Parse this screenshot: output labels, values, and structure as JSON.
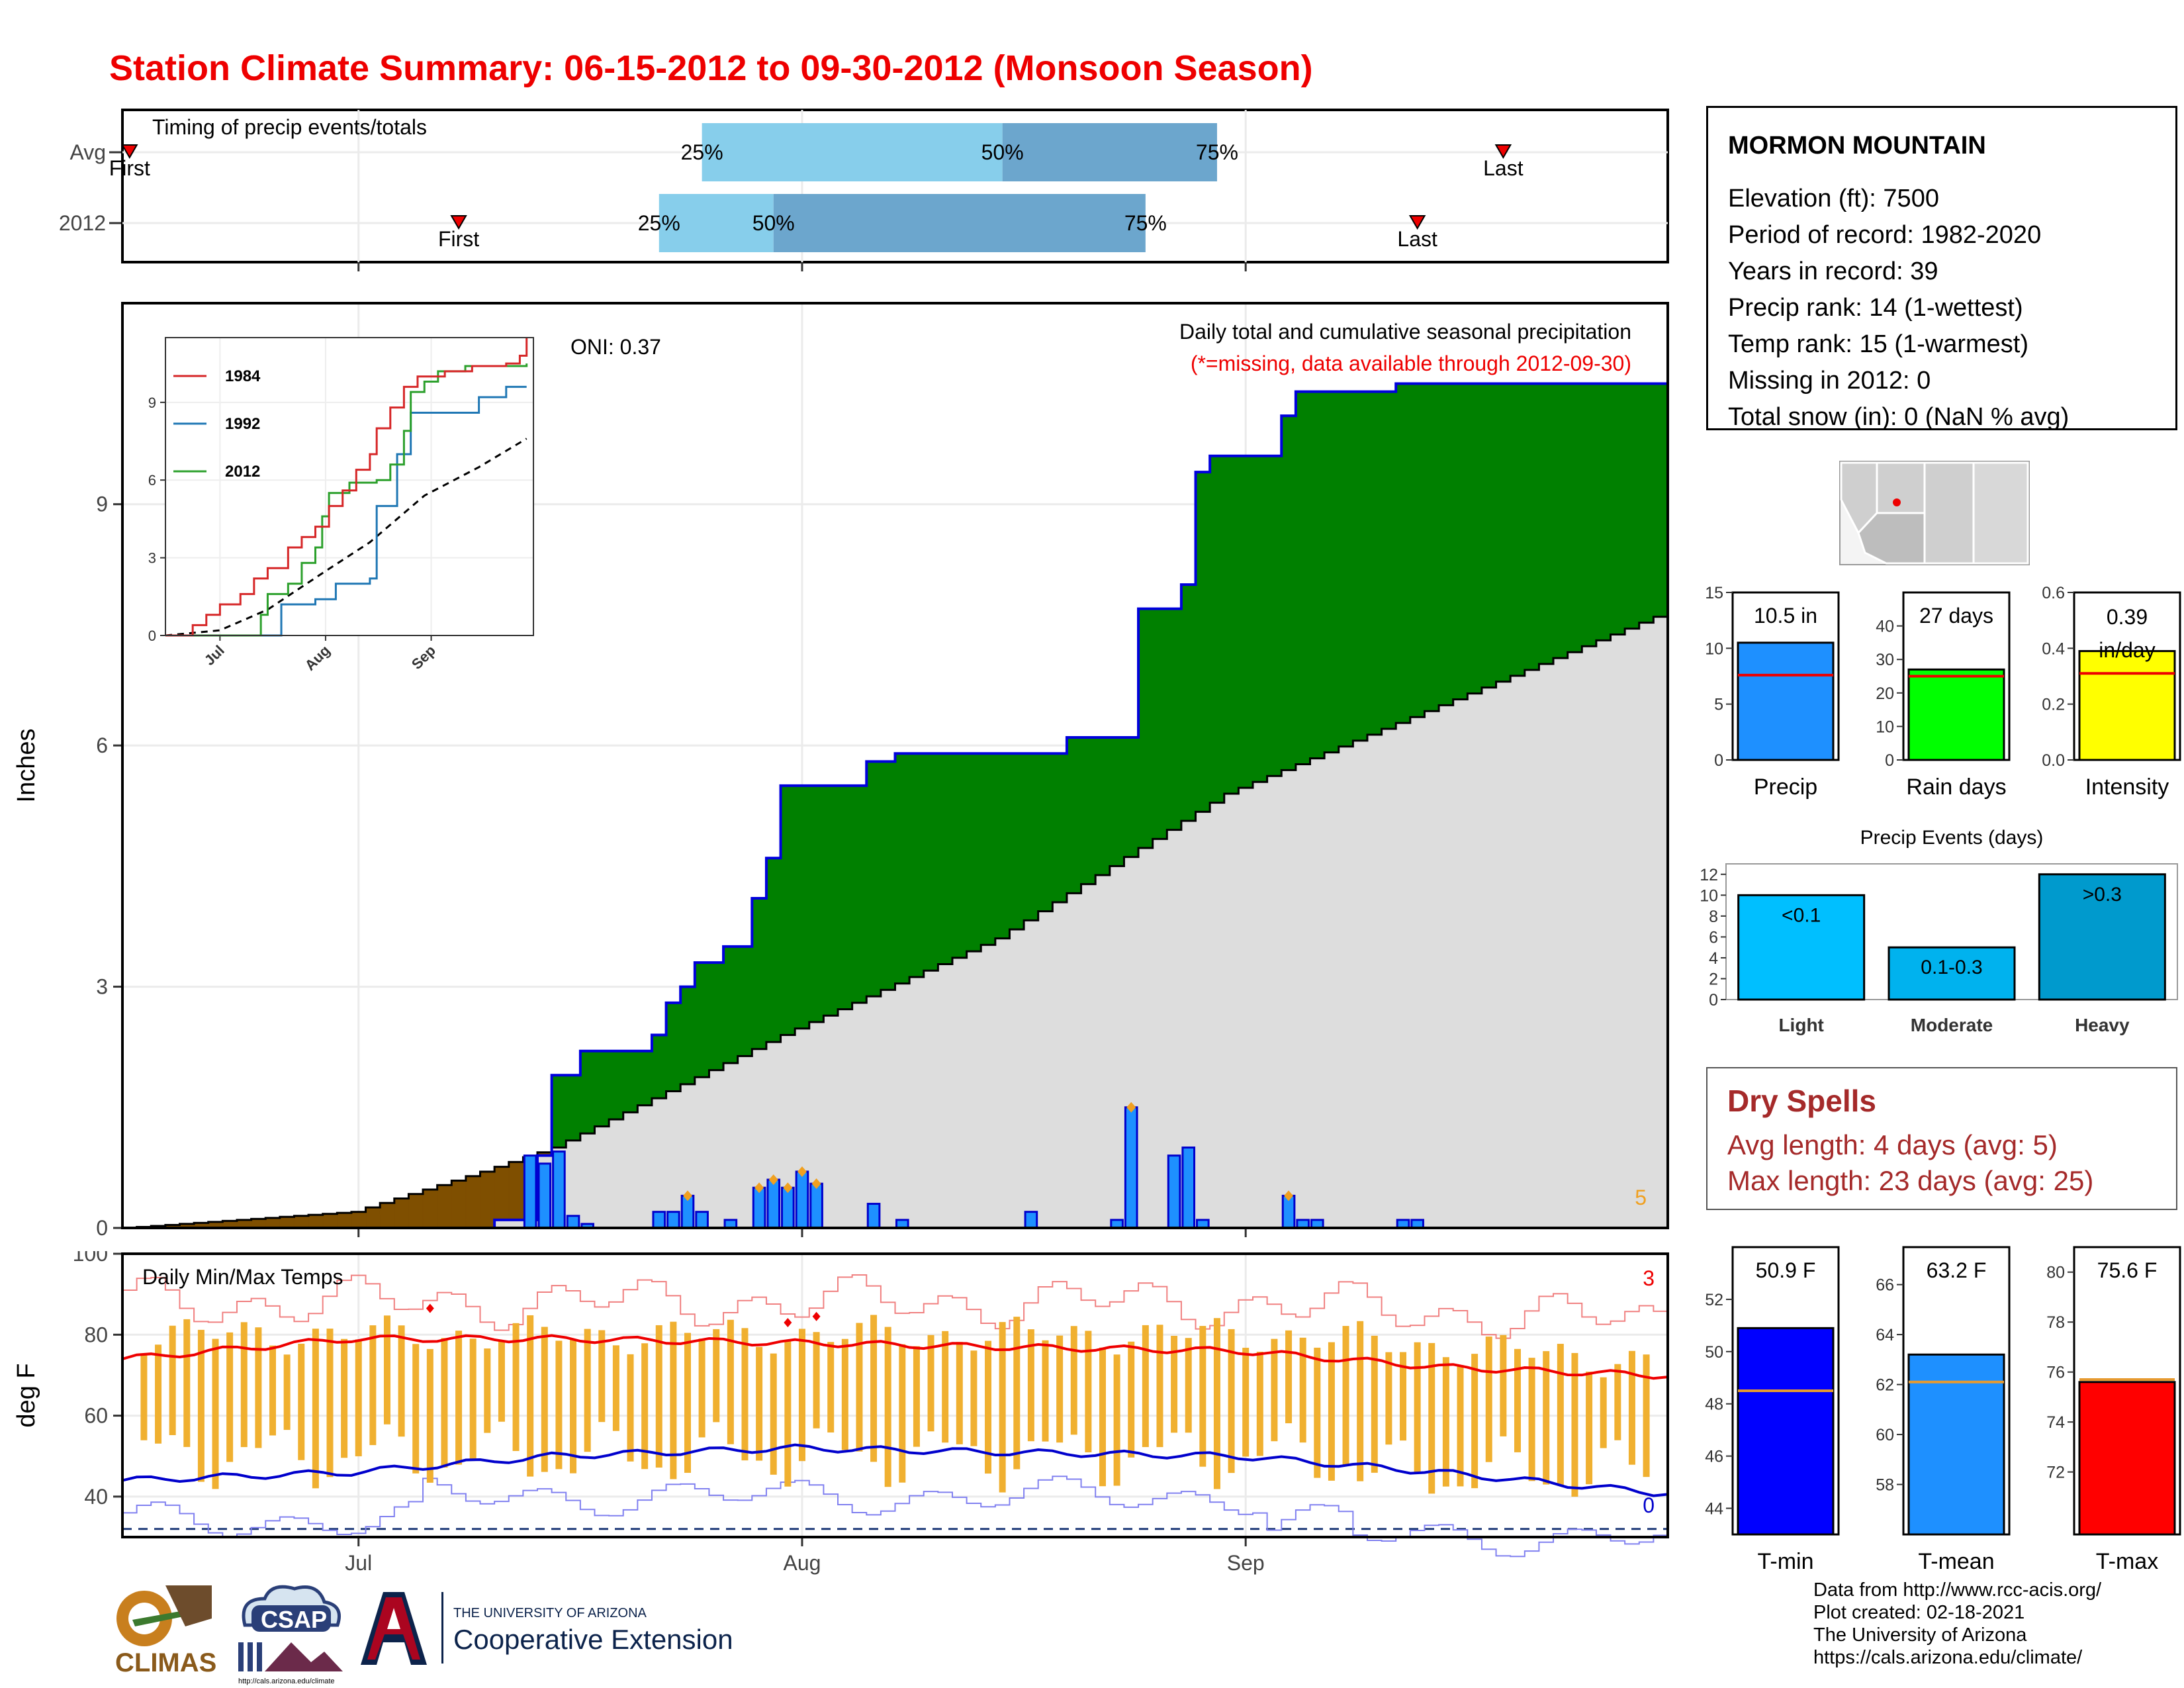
{
  "title": "Station Climate Summary: 06-15-2012 to 09-30-2012 (Monsoon Season)",
  "colors": {
    "title": "#ee0000",
    "green_surplus": "#008000",
    "brown_deficit": "#7f4f00",
    "avg_cumulative": "#dddddd",
    "daily_bars": "#1e90ff",
    "timing_light": "#87ceeb",
    "timing_dark": "#6ca6cd",
    "temp_bars": "#f0b030",
    "temp_max_line": "#ee0000",
    "temp_min_line": "#0000cc",
    "dry_spells": "#a52a2a"
  },
  "timing": {
    "label": "Timing of precip events/totals",
    "rows": [
      {
        "name": "Avg",
        "first_label": "First",
        "last_label": "Last",
        "first": "2012-06-15",
        "p25": "2012-07-25",
        "p50": "2012-08-15",
        "p75": "2012-08-30",
        "last": "2012-09-19"
      },
      {
        "name": "2012",
        "first_label": "First",
        "last_label": "Last",
        "first": "2012-07-08",
        "p25": "2012-07-22",
        "p50": "2012-07-30",
        "p75": "2012-08-25",
        "last": "2012-09-13"
      }
    ],
    "pct_labels": [
      "25%",
      "50%",
      "75%"
    ]
  },
  "precip": {
    "ylabel": "Inches",
    "oni": "ONI: 0.37",
    "caption": "Daily total and cumulative seasonal precipitation",
    "note": "(*=missing, data available through 2012-09-30)",
    "corner_value": "5",
    "yticks": [
      "0",
      "3",
      "6",
      "9"
    ],
    "xticks": [
      "Jul",
      "Aug",
      "Sep"
    ]
  },
  "inset": {
    "legend": [
      "1984",
      "1992",
      "2012"
    ],
    "yticks": [
      "0",
      "3",
      "6",
      "9"
    ],
    "xticks": [
      "Jul",
      "Aug",
      "Sep"
    ]
  },
  "temps": {
    "ylabel": "deg F",
    "label": "Daily Min/Max Temps",
    "corner_top": "3",
    "corner_bottom": "0",
    "yticks": [
      "40",
      "60",
      "80",
      "100"
    ]
  },
  "station": {
    "name": "MORMON MOUNTAIN",
    "lines": [
      "Elevation (ft): 7500",
      "Period of record: 1982-2020",
      "Years in record: 39",
      "Precip rank: 14 (1-wettest)",
      "Temp rank: 15 (1-warmest)",
      "Missing in 2012: 0",
      "Total snow (in): 0 (NaN % avg)"
    ]
  },
  "summary_bars": [
    {
      "label": "Precip",
      "value_label": "10.5 in",
      "value": 10.5,
      "avg": 7.6,
      "ymax": 15,
      "ticks": [
        "0",
        "5",
        "10",
        "15"
      ],
      "color": "#1e90ff"
    },
    {
      "label": "Rain days",
      "value_label": "27 days",
      "value": 27,
      "avg": 25,
      "ymax": 50,
      "ticks": [
        "0",
        "10",
        "20",
        "30",
        "40"
      ],
      "color": "#00ff00"
    },
    {
      "label": "Intensity",
      "value_label": "0.39\nin/day",
      "value": 0.39,
      "avg": 0.31,
      "ymax": 0.6,
      "ticks": [
        "0.0",
        "0.2",
        "0.4",
        "0.6"
      ],
      "color": "#ffff00"
    }
  ],
  "precip_events": {
    "title": "Precip Events (days)",
    "yticks": [
      "0",
      "2",
      "4",
      "6",
      "8",
      "10",
      "12"
    ],
    "bars": [
      {
        "category": "Light",
        "label": "<0.1",
        "value": 10,
        "color": "#00bfff"
      },
      {
        "category": "Moderate",
        "label": "0.1-0.3",
        "value": 5,
        "color": "#00b2ee"
      },
      {
        "category": "Heavy",
        "label": ">0.3",
        "value": 12,
        "color": "#009acd"
      }
    ]
  },
  "dry_spells": {
    "title": "Dry Spells",
    "avg_line": "Avg length: 4 days (avg: 5)",
    "max_line": "Max length: 23 days (avg: 25)"
  },
  "temp_bars": [
    {
      "label": "T-min",
      "value_label": "50.9 F",
      "value": 50.9,
      "avg": 48.5,
      "ymin": 43,
      "ymax": 54,
      "ticks": [
        "44",
        "46",
        "48",
        "50",
        "52"
      ],
      "color": "#0000ff"
    },
    {
      "label": "T-mean",
      "value_label": "63.2 F",
      "value": 63.2,
      "avg": 62.1,
      "ymin": 56,
      "ymax": 67.5,
      "ticks": [
        "58",
        "60",
        "62",
        "64",
        "66"
      ],
      "color": "#1e90ff"
    },
    {
      "label": "T-max",
      "value_label": "75.6 F",
      "value": 75.6,
      "avg": 75.7,
      "ymin": 69.5,
      "ymax": 81,
      "ticks": [
        "72",
        "74",
        "76",
        "78",
        "80"
      ],
      "color": "#ff0000"
    }
  ],
  "logos": {
    "climas": "CLIMAS",
    "csap": "CSAP",
    "csap_url": "http://cals.arizona.edu/climate",
    "ua_top": "THE UNIVERSITY OF ARIZONA",
    "ua_bottom": "Cooperative Extension"
  },
  "credits": [
    "Data from http://www.rcc-acis.org/",
    "Plot created: 02-18-2021",
    "The University of Arizona",
    "https://cals.arizona.edu/climate/"
  ],
  "chart_data": {
    "type": "area",
    "period": [
      "2012-06-15",
      "2012-09-30"
    ],
    "xlabel": "",
    "ylabel": "Inches",
    "ylim": [
      0,
      11.5
    ],
    "series": [
      {
        "name": "2012",
        "x": [
          "2012-06-15",
          "2012-07-11",
          "2012-07-14",
          "2012-07-15",
          "2012-07-17",
          "2012-07-22",
          "2012-07-23",
          "2012-07-24",
          "2012-07-25",
          "2012-07-27",
          "2012-07-29",
          "2012-07-30",
          "2012-07-31",
          "2012-08-02",
          "2012-08-06",
          "2012-08-08",
          "2012-08-12",
          "2012-08-20",
          "2012-08-24",
          "2012-08-25",
          "2012-08-28",
          "2012-08-29",
          "2012-08-30",
          "2012-09-04",
          "2012-09-05",
          "2012-09-06",
          "2012-09-11",
          "2012-09-12",
          "2012-09-30"
        ],
        "y": [
          0.0,
          0.1,
          0.9,
          1.9,
          2.2,
          2.4,
          2.8,
          3.0,
          3.3,
          3.5,
          4.1,
          4.6,
          5.5,
          5.5,
          5.8,
          5.9,
          5.9,
          6.1,
          6.1,
          7.7,
          8.0,
          9.4,
          9.6,
          10.1,
          10.4,
          10.4,
          10.4,
          10.5,
          10.5
        ]
      },
      {
        "name": "Average",
        "x": [
          "2012-06-15",
          "2012-07-01",
          "2012-07-10",
          "2012-07-15",
          "2012-07-31",
          "2012-08-15",
          "2012-08-31",
          "2012-09-15",
          "2012-09-30"
        ],
        "y": [
          0.0,
          0.2,
          0.7,
          1.0,
          2.4,
          3.6,
          5.4,
          6.5,
          7.6
        ]
      },
      {
        "name": "Daily precip",
        "x": [
          "2012-07-13",
          "2012-07-14",
          "2012-07-15",
          "2012-07-16",
          "2012-07-17",
          "2012-07-22",
          "2012-07-23",
          "2012-07-24",
          "2012-07-25",
          "2012-07-27",
          "2012-07-29",
          "2012-07-30",
          "2012-07-31",
          "2012-08-01",
          "2012-08-02",
          "2012-08-06",
          "2012-08-08",
          "2012-08-17",
          "2012-08-23",
          "2012-08-24",
          "2012-08-27",
          "2012-08-28",
          "2012-08-29",
          "2012-09-04",
          "2012-09-05",
          "2012-09-06",
          "2012-09-12",
          "2012-09-13"
        ],
        "y": [
          0.9,
          0.8,
          0.95,
          0.15,
          0.05,
          0.2,
          0.2,
          0.4,
          0.2,
          0.1,
          0.5,
          0.6,
          0.5,
          0.7,
          0.55,
          0.3,
          0.1,
          0.2,
          0.1,
          1.5,
          0.9,
          1.0,
          0.1,
          0.4,
          0.1,
          0.1,
          0.1,
          0.1
        ]
      }
    ],
    "temps": {
      "type": "line",
      "ylabel": "deg F",
      "ylim": [
        30,
        100
      ],
      "series": [
        {
          "name": "Avg max",
          "x": [
            "2012-06-15",
            "2012-07-01",
            "2012-07-15",
            "2012-08-01",
            "2012-08-15",
            "2012-09-01",
            "2012-09-15",
            "2012-09-30"
          ],
          "y": [
            74,
            79,
            79,
            78,
            77,
            76,
            72,
            70
          ]
        },
        {
          "name": "Avg min",
          "x": [
            "2012-06-15",
            "2012-07-01",
            "2012-07-15",
            "2012-08-01",
            "2012-08-15",
            "2012-09-01",
            "2012-09-15",
            "2012-09-30"
          ],
          "y": [
            44,
            46,
            50,
            52,
            51,
            50,
            46,
            41
          ]
        }
      ]
    }
  }
}
